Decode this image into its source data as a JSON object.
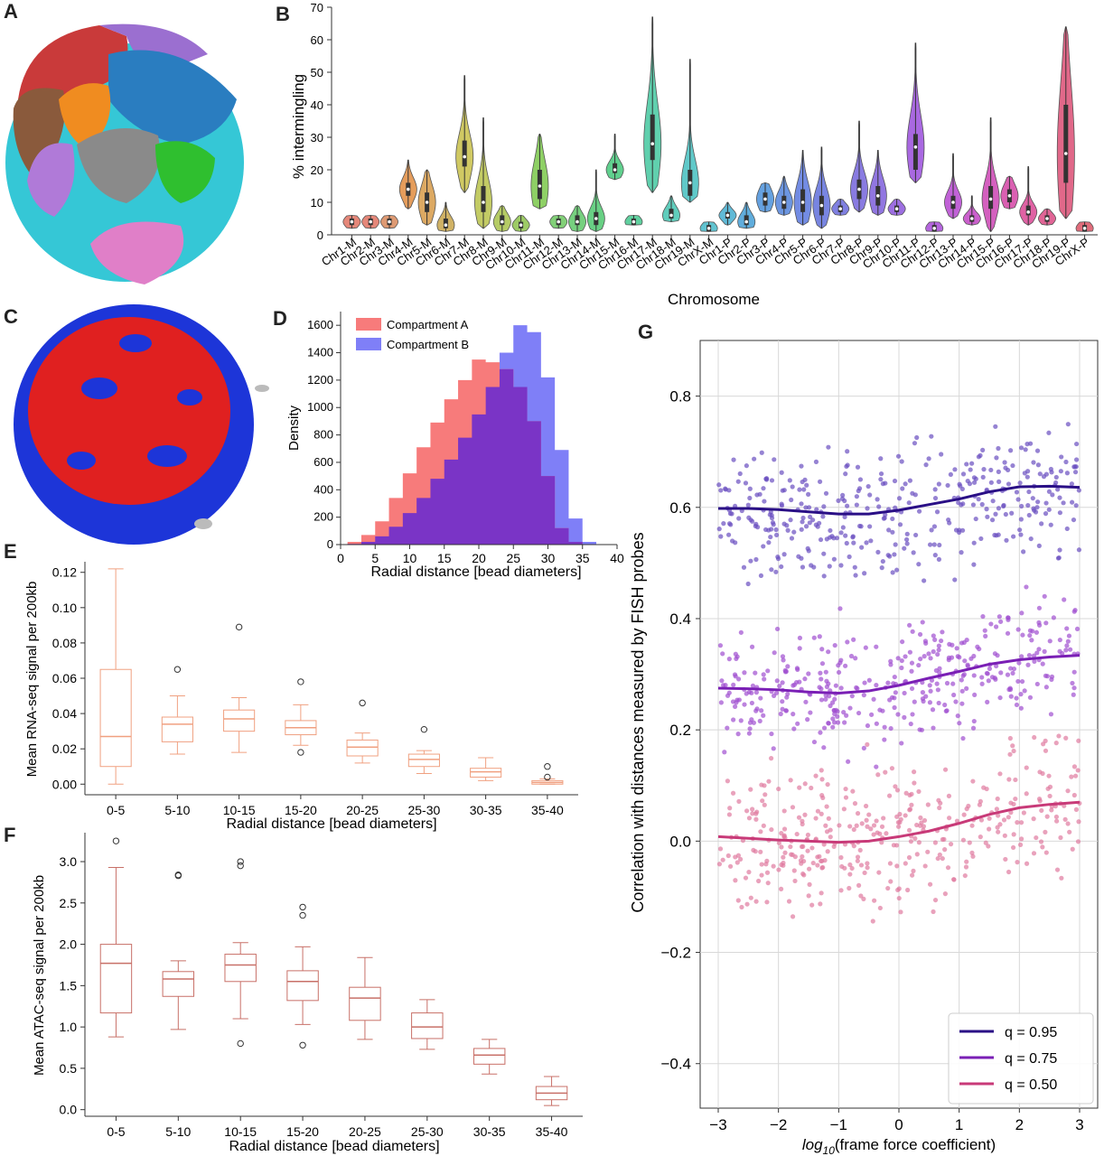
{
  "panel_labels": {
    "A": "A",
    "B": "B",
    "C": "C",
    "D": "D",
    "E": "E",
    "F": "F",
    "G": "G"
  },
  "colors": {
    "compA": "#f77b7b",
    "compB": "#7f7ff7",
    "overlap": "#7a34c6",
    "box_e": "#f0a080",
    "box_f": "#c87068",
    "q95": "#2a0f86",
    "q75": "#7a1fb5",
    "q50": "#c83a78"
  },
  "chart_data": [
    {
      "id": "B",
      "type": "violin",
      "xlabel": "Chromosome",
      "ylabel": "% intermingling",
      "ylim": [
        0,
        70
      ],
      "yticks": [
        0,
        10,
        20,
        30,
        40,
        50,
        60,
        70
      ],
      "categories": [
        "Chr1-M",
        "Chr2-M",
        "Chr3-M",
        "Chr4-M",
        "Chr5-M",
        "Chr6-M",
        "Chr7-M",
        "Chr8-M",
        "Chr9-M",
        "Chr10-M",
        "Chr11-M",
        "Chr12-M",
        "Chr13-M",
        "Chr14-M",
        "Chr15-M",
        "Chr16-M",
        "Chr17-M",
        "Chr18-M",
        "Chr19-M",
        "ChrX-M",
        "Chr1-P",
        "Chr2-P",
        "Chr3-P",
        "Chr4-P",
        "Chr5-P",
        "Chr6-P",
        "Chr7-P",
        "Chr8-P",
        "Chr9-P",
        "Chr10-P",
        "Chr11-P",
        "Chr12-P",
        "Chr13-P",
        "Chr14-P",
        "Chr15-P",
        "Chr16-P",
        "Chr17-P",
        "Chr18-P",
        "Chr19-P",
        "ChrX-P"
      ],
      "colors": [
        "#e07262",
        "#e07262",
        "#d8885a",
        "#e08c40",
        "#d69a48",
        "#c8a44a",
        "#c8c048",
        "#b9c24a",
        "#a8c24a",
        "#8cc24a",
        "#7ac84a",
        "#6cc860",
        "#5ec868",
        "#4ec86e",
        "#44c87a",
        "#44c88e",
        "#44c8a0",
        "#44c4b0",
        "#44c0c0",
        "#44b8c8",
        "#44aed0",
        "#449fd6",
        "#4a90da",
        "#5284dc",
        "#5a78de",
        "#6070dc",
        "#6a6adc",
        "#7464dc",
        "#7e5edc",
        "#8c56dc",
        "#9a4edc",
        "#a84ad8",
        "#b646d0",
        "#c244c4",
        "#cc44b4",
        "#d444a4",
        "#da4694",
        "#dc4a84",
        "#dc4e74",
        "#dc5264"
      ],
      "median": [
        4,
        4,
        4,
        14,
        10,
        3,
        24,
        10,
        4,
        3,
        15,
        4,
        4,
        5,
        20,
        4,
        28,
        6,
        16,
        2,
        6,
        4,
        11,
        10,
        10,
        9,
        8,
        14,
        12,
        8,
        27,
        2,
        10,
        5,
        11,
        12,
        7,
        5,
        25,
        2
      ],
      "q1": [
        3,
        3,
        3,
        12,
        7,
        2,
        21,
        7,
        3,
        2,
        11,
        3,
        3,
        3,
        19,
        3,
        23,
        5,
        12,
        1,
        5,
        3,
        9,
        8,
        7,
        6,
        7,
        11,
        9,
        7,
        20,
        1,
        8,
        4,
        8,
        10,
        6,
        4,
        16,
        1
      ],
      "q3": [
        5,
        5,
        5,
        16,
        13,
        5,
        29,
        15,
        6,
        4,
        20,
        5,
        6,
        7,
        22,
        5,
        37,
        8,
        20,
        3,
        7,
        6,
        13,
        12,
        14,
        12,
        9,
        17,
        15,
        9,
        31,
        3,
        12,
        6,
        15,
        14,
        9,
        6,
        40,
        3
      ],
      "min": [
        2,
        2,
        2,
        8,
        3,
        1,
        13,
        2,
        1,
        1,
        8,
        2,
        1,
        1,
        17,
        3,
        13,
        4,
        10,
        1,
        3,
        2,
        7,
        6,
        3,
        2,
        6,
        7,
        6,
        6,
        16,
        1,
        5,
        3,
        1,
        8,
        3,
        3,
        5,
        1
      ],
      "max": [
        6,
        6,
        6,
        23,
        20,
        10,
        49,
        36,
        9,
        6,
        31,
        6,
        9,
        20,
        31,
        6,
        67,
        12,
        54,
        4,
        10,
        10,
        16,
        18,
        26,
        27,
        11,
        35,
        26,
        11,
        59,
        4,
        25,
        12,
        36,
        18,
        21,
        8,
        64,
        4
      ]
    },
    {
      "id": "D",
      "type": "histogram",
      "xlabel": "Radial distance [bead diameters]",
      "ylabel": "Density",
      "xlim": [
        0,
        40
      ],
      "ylim": [
        0,
        1700
      ],
      "xticks": [
        0,
        5,
        10,
        15,
        20,
        25,
        30,
        35,
        40
      ],
      "yticks": [
        0,
        200,
        400,
        600,
        800,
        1000,
        1200,
        1400,
        1600
      ],
      "legend_position": "top-left",
      "bin_width": 2,
      "bin_start": 1,
      "series": [
        {
          "name": "Compartment A",
          "values": [
            20,
            70,
            170,
            340,
            520,
            710,
            890,
            1060,
            1200,
            1350,
            1330,
            1280,
            1150,
            900,
            500,
            120,
            20,
            0
          ]
        },
        {
          "name": "Compartment B",
          "values": [
            5,
            20,
            60,
            130,
            230,
            340,
            480,
            620,
            780,
            950,
            1150,
            1400,
            1600,
            1550,
            1220,
            690,
            190,
            20
          ]
        }
      ]
    },
    {
      "id": "E",
      "type": "box",
      "xlabel": "Radial distance [bead diameters]",
      "ylabel": "Mean RNA-seq signal per 200kb",
      "ylim": [
        -0.006,
        0.126
      ],
      "yticks": [
        0.0,
        0.02,
        0.04,
        0.06,
        0.08,
        0.1,
        0.12
      ],
      "ytick_labels": [
        "0.00",
        "0.02",
        "0.04",
        "0.06",
        "0.08",
        "0.10",
        "0.12"
      ],
      "categories": [
        "0-5",
        "5-10",
        "10-15",
        "15-20",
        "20-25",
        "25-30",
        "30-35",
        "35-40"
      ],
      "whislo": [
        0.0,
        0.017,
        0.018,
        0.022,
        0.012,
        0.006,
        0.002,
        0.0
      ],
      "q1": [
        0.01,
        0.024,
        0.03,
        0.028,
        0.016,
        0.01,
        0.004,
        0.0
      ],
      "median": [
        0.027,
        0.034,
        0.037,
        0.032,
        0.021,
        0.014,
        0.007,
        0.001
      ],
      "q3": [
        0.065,
        0.038,
        0.042,
        0.036,
        0.025,
        0.017,
        0.009,
        0.002
      ],
      "whishi": [
        0.122,
        0.05,
        0.049,
        0.045,
        0.029,
        0.019,
        0.015,
        0.003
      ],
      "fliers": [
        [],
        [
          0.065
        ],
        [
          0.089
        ],
        [
          0.018,
          0.058
        ],
        [
          0.046
        ],
        [
          0.031
        ],
        [],
        [
          0.004,
          0.01
        ]
      ]
    },
    {
      "id": "F",
      "type": "box",
      "xlabel": "Radial distance [bead diameters]",
      "ylabel": "Mean ATAC-seq signal per 200kb",
      "ylim": [
        -0.08,
        3.35
      ],
      "yticks": [
        0.0,
        0.5,
        1.0,
        1.5,
        2.0,
        2.5,
        3.0
      ],
      "ytick_labels": [
        "0.0",
        "0.5",
        "1.0",
        "1.5",
        "2.0",
        "2.5",
        "3.0"
      ],
      "categories": [
        "0-5",
        "5-10",
        "10-15",
        "15-20",
        "20-25",
        "25-30",
        "30-35",
        "35-40"
      ],
      "whislo": [
        0.88,
        0.97,
        1.1,
        1.03,
        0.85,
        0.73,
        0.43,
        0.05
      ],
      "q1": [
        1.17,
        1.37,
        1.55,
        1.32,
        1.08,
        0.86,
        0.55,
        0.12
      ],
      "median": [
        1.77,
        1.58,
        1.75,
        1.55,
        1.35,
        1.0,
        0.66,
        0.2
      ],
      "q3": [
        2.0,
        1.67,
        1.88,
        1.68,
        1.48,
        1.17,
        0.74,
        0.28
      ],
      "whishi": [
        2.93,
        1.8,
        2.02,
        1.97,
        1.84,
        1.33,
        0.85,
        0.4
      ],
      "fliers": [
        [
          3.25
        ],
        [
          2.83,
          2.84
        ],
        [
          0.8,
          2.95,
          3.0
        ],
        [
          0.78,
          2.35,
          2.45
        ],
        [],
        [],
        [],
        []
      ]
    },
    {
      "id": "G",
      "type": "scatter",
      "xlabel_prefix": "log",
      "xlabel_sub": "10",
      "xlabel_rest": "(frame force coefficient)",
      "ylabel": "Correlation with distances measured by FISH probes",
      "xlim": [
        -3.3,
        3.3
      ],
      "ylim": [
        -0.48,
        0.9
      ],
      "xticks": [
        -3,
        -2,
        -1,
        0,
        1,
        2,
        3
      ],
      "xtick_labels": [
        "−3",
        "−2",
        "−1",
        "0",
        "1",
        "2",
        "3"
      ],
      "yticks": [
        -0.4,
        -0.2,
        0.0,
        0.2,
        0.4,
        0.6,
        0.8
      ],
      "ytick_labels": [
        "−0.4",
        "−0.2",
        "0.0",
        "0.2",
        "0.4",
        "0.6",
        "0.8"
      ],
      "grid": true,
      "legend_position": "bottom-right",
      "trend_x": [
        -3,
        -2.5,
        -2,
        -1.5,
        -1,
        -0.5,
        0,
        0.5,
        1,
        1.5,
        2,
        2.5,
        3
      ],
      "series": [
        {
          "name": "q = 0.95",
          "trend": [
            0.598,
            0.598,
            0.596,
            0.592,
            0.588,
            0.588,
            0.595,
            0.605,
            0.615,
            0.628,
            0.637,
            0.638,
            0.636
          ],
          "spread": 0.08
        },
        {
          "name": "q = 0.75",
          "trend": [
            0.275,
            0.274,
            0.272,
            0.268,
            0.266,
            0.27,
            0.28,
            0.293,
            0.305,
            0.318,
            0.326,
            0.331,
            0.334
          ],
          "spread": 0.07
        },
        {
          "name": "q = 0.50",
          "trend": [
            0.008,
            0.005,
            0.002,
            0.0,
            -0.002,
            0.0,
            0.008,
            0.018,
            0.032,
            0.048,
            0.06,
            0.066,
            0.07
          ],
          "spread": 0.09
        }
      ]
    }
  ]
}
